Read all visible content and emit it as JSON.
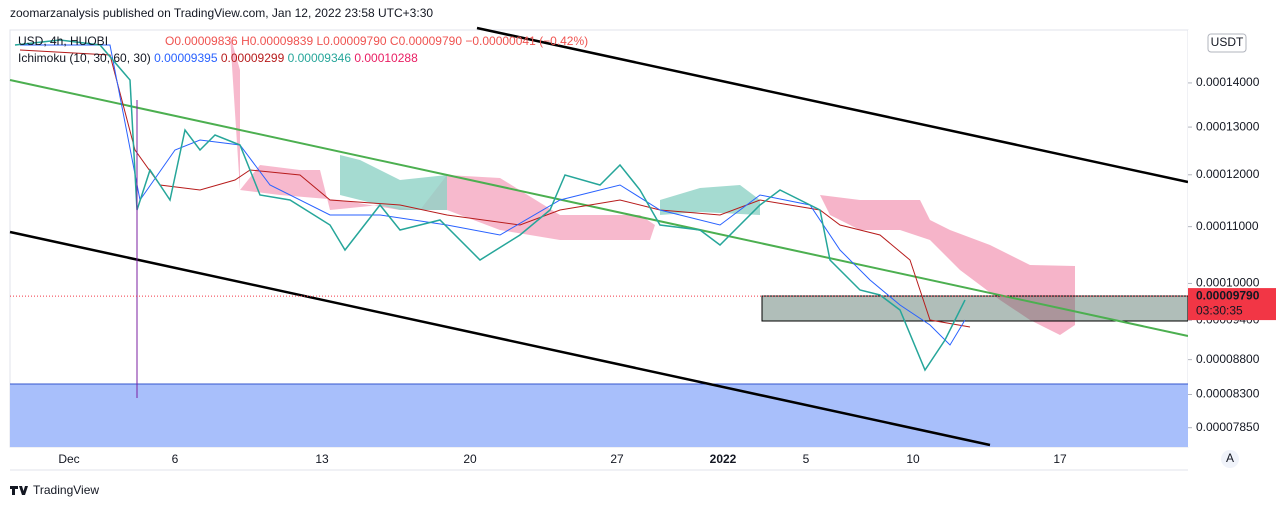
{
  "header": {
    "publisher_line": "zoomarzanalysis published on TradingView.com, Jan 12, 2022 23:58 UTC+3:30"
  },
  "legend": {
    "symbol": "USD, 4h, HUOBI",
    "ohlc": [
      "O0.00009836",
      "H0.00009839",
      "L0.00009790",
      "C0.00009790"
    ],
    "change": "−0.00000041 (−0.42%)"
  },
  "ichimoku": {
    "name": "Ichimoku (10, 30, 60, 30)",
    "values": [
      {
        "text": "0.00009395",
        "color": "#2962ff"
      },
      {
        "text": "0.00009299",
        "color": "#b71c1c"
      },
      {
        "text": "0.00009346",
        "color": "#26a69a"
      },
      {
        "text": "0.00010288",
        "color": "#e91e63"
      }
    ]
  },
  "price_axis": {
    "currency": "USDT",
    "log_scale": true,
    "ylim": [
      7.6e-05,
      0.000153
    ],
    "yticks": [
      {
        "value": 0.00014,
        "label": "0.00014000"
      },
      {
        "value": 0.00013,
        "label": "0.00013000"
      },
      {
        "value": 0.00012,
        "label": "0.00012000"
      },
      {
        "value": 0.00011,
        "label": "0.00011000"
      },
      {
        "value": 0.0001,
        "label": "0.00010000"
      },
      {
        "value": 9.4e-05,
        "label": "0.00009400"
      },
      {
        "value": 8.8e-05,
        "label": "0.00008800"
      },
      {
        "value": 8.3e-05,
        "label": "0.00008300"
      },
      {
        "value": 7.85e-05,
        "label": "0.00007850"
      }
    ],
    "last_price": {
      "value": 9.79e-05,
      "label": "0.00009790",
      "color": "#f23645"
    },
    "countdown": "03:30:35"
  },
  "time_axis": {
    "labels": [
      "Dec",
      "6",
      "13",
      "20",
      "27",
      "2022",
      "5",
      "10",
      "17"
    ]
  },
  "footer": {
    "brand": "TradingView"
  },
  "auto_button": "A"
}
